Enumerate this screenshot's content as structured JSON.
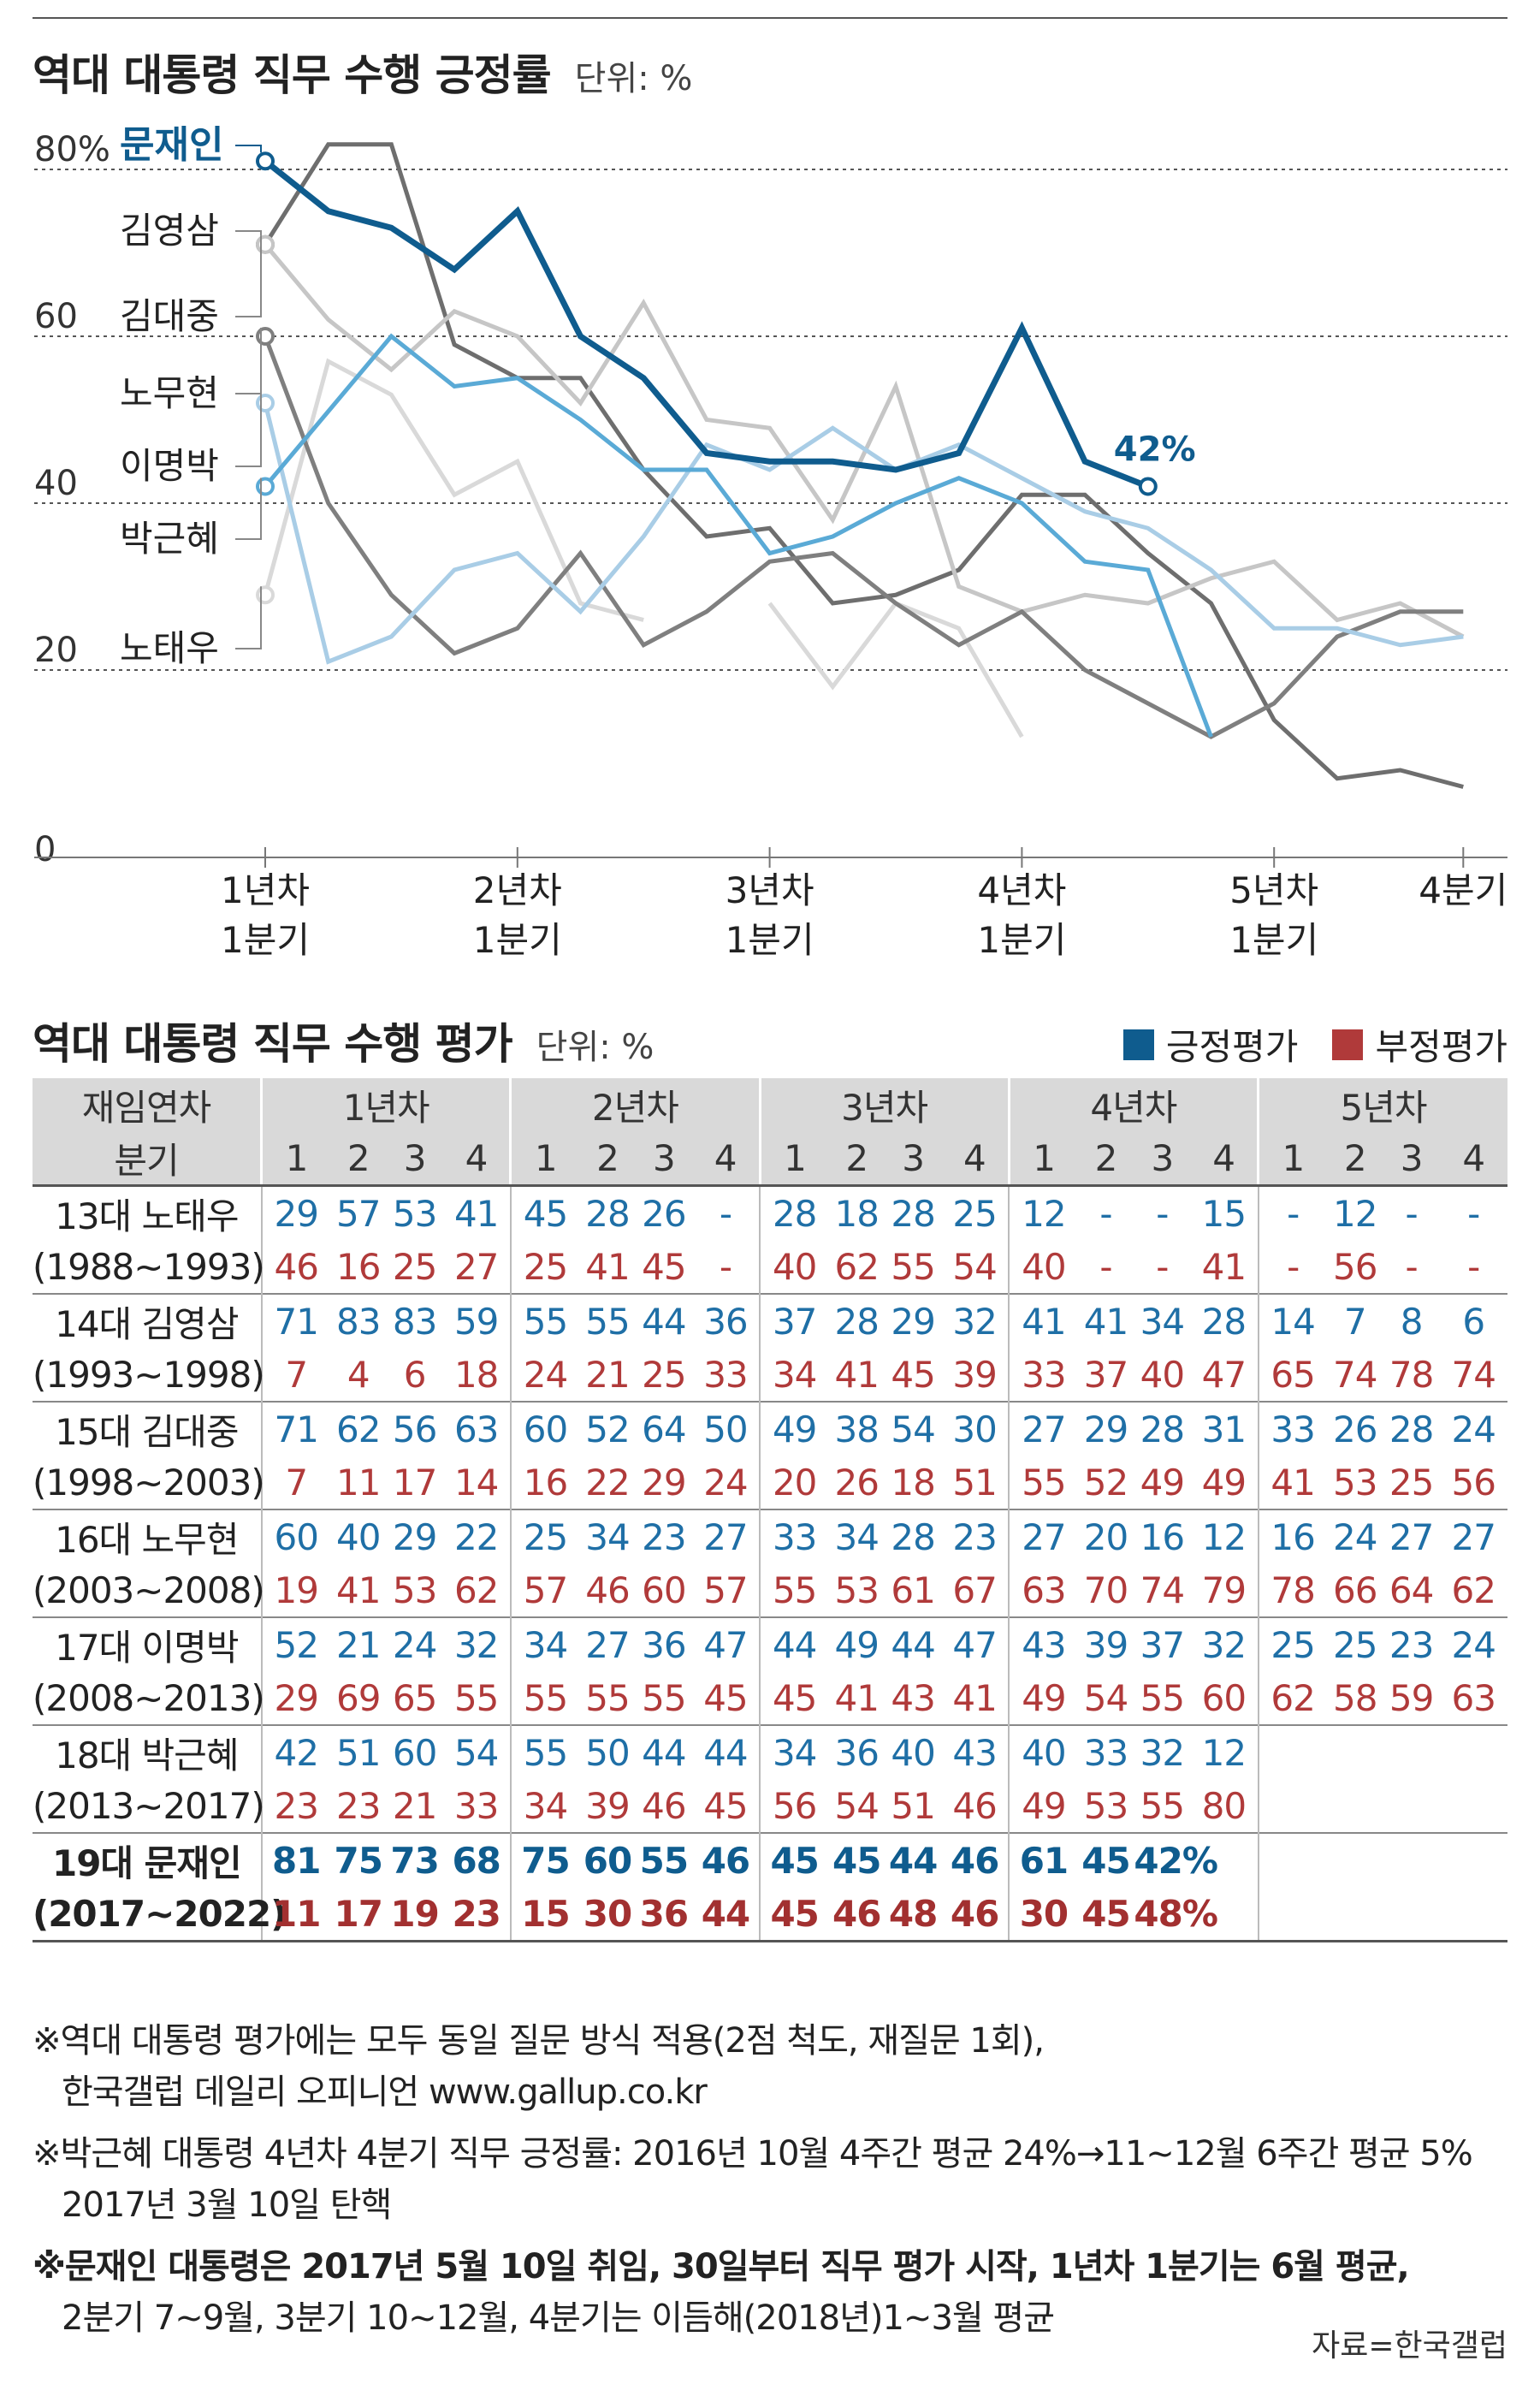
{
  "chart_title": "역대 대통령 직무 수행 긍정률",
  "chart_unit": "단위: %",
  "chart_data": {
    "type": "line",
    "title": "역대 대통령 직무 수행 긍정률",
    "ylabel": "",
    "ylim": [
      0,
      80
    ],
    "y_ticks": [
      "0",
      "20",
      "40",
      "60",
      "80%"
    ],
    "x_tick_labels": [
      {
        "quarter": 1,
        "label": [
          "1년차",
          "1분기"
        ]
      },
      {
        "quarter": 5,
        "label": [
          "2년차",
          "1분기"
        ]
      },
      {
        "quarter": 9,
        "label": [
          "3년차",
          "1분기"
        ]
      },
      {
        "quarter": 13,
        "label": [
          "4년차",
          "1분기"
        ]
      },
      {
        "quarter": 17,
        "label": [
          "5년차",
          "1분기"
        ]
      },
      {
        "quarter": 20,
        "label": [
          "4분기"
        ]
      }
    ],
    "x": [
      1,
      2,
      3,
      4,
      5,
      6,
      7,
      8,
      9,
      10,
      11,
      12,
      13,
      14,
      15,
      16,
      17,
      18,
      19,
      20
    ],
    "grid": true,
    "series": [
      {
        "name": "노태우",
        "color": "#d9d9d9",
        "values": [
          29,
          57,
          53,
          41,
          45,
          28,
          26,
          null,
          28,
          18,
          28,
          25,
          12,
          null,
          null,
          15,
          null,
          12,
          null,
          null
        ]
      },
      {
        "name": "김영삼",
        "color": "#6e6e6e",
        "values": [
          71,
          83,
          83,
          59,
          55,
          55,
          44,
          36,
          37,
          28,
          29,
          32,
          41,
          41,
          34,
          28,
          14,
          7,
          8,
          6
        ]
      },
      {
        "name": "김대중",
        "color": "#c6c6c6",
        "values": [
          71,
          62,
          56,
          63,
          60,
          52,
          64,
          50,
          49,
          38,
          54,
          30,
          27,
          29,
          28,
          31,
          33,
          26,
          28,
          24
        ]
      },
      {
        "name": "노무현",
        "color": "#7f7f7f",
        "values": [
          60,
          40,
          29,
          22,
          25,
          34,
          23,
          27,
          33,
          34,
          28,
          23,
          27,
          20,
          16,
          12,
          16,
          24,
          27,
          27
        ]
      },
      {
        "name": "이명박",
        "color": "#a9cde6",
        "values": [
          52,
          21,
          24,
          32,
          34,
          27,
          36,
          47,
          44,
          49,
          44,
          47,
          43,
          39,
          37,
          32,
          25,
          25,
          23,
          24
        ]
      },
      {
        "name": "박근혜",
        "color": "#5aaad6",
        "values": [
          42,
          51,
          60,
          54,
          55,
          50,
          44,
          44,
          34,
          36,
          40,
          43,
          40,
          33,
          32,
          12,
          null,
          null,
          null,
          null
        ]
      },
      {
        "name": "문재인",
        "color": "#0f5c8e",
        "values": [
          81,
          75,
          73,
          68,
          75,
          60,
          55,
          46,
          45,
          45,
          44,
          46,
          61,
          45,
          42,
          null,
          null,
          null,
          null,
          null
        ]
      }
    ],
    "annotations": [
      {
        "series": "문재인",
        "text": "42%"
      }
    ]
  },
  "eval_title": "역대 대통령 직무 수행 평가",
  "eval_unit": "단위: %",
  "legend": {
    "positive": "긍정평가",
    "negative": "부정평가",
    "positive_color": "#0f5c8e",
    "negative_color": "#b03a3a"
  },
  "table": {
    "corner": "재임연차",
    "quarter_label": "분기",
    "years": [
      "1년차",
      "2년차",
      "3년차",
      "4년차",
      "5년차"
    ],
    "quarters": [
      "1",
      "2",
      "3",
      "4"
    ],
    "rows": [
      {
        "name": "13대 노태우",
        "period": "(1988~1993)",
        "pos": [
          [
            "29",
            "57",
            "53",
            "41"
          ],
          [
            "45",
            "28",
            "26",
            "-"
          ],
          [
            "28",
            "18",
            "28",
            "25"
          ],
          [
            "12",
            "-",
            "-",
            "15"
          ],
          [
            "-",
            "12",
            "-",
            "-"
          ]
        ],
        "neg": [
          [
            "46",
            "16",
            "25",
            "27"
          ],
          [
            "25",
            "41",
            "45",
            "-"
          ],
          [
            "40",
            "62",
            "55",
            "54"
          ],
          [
            "40",
            "-",
            "-",
            "41"
          ],
          [
            "-",
            "56",
            "-",
            "-"
          ]
        ]
      },
      {
        "name": "14대 김영삼",
        "period": "(1993~1998)",
        "pos": [
          [
            "71",
            "83",
            "83",
            "59"
          ],
          [
            "55",
            "55",
            "44",
            "36"
          ],
          [
            "37",
            "28",
            "29",
            "32"
          ],
          [
            "41",
            "41",
            "34",
            "28"
          ],
          [
            "14",
            "7",
            "8",
            "6"
          ]
        ],
        "neg": [
          [
            "7",
            "4",
            "6",
            "18"
          ],
          [
            "24",
            "21",
            "25",
            "33"
          ],
          [
            "34",
            "41",
            "45",
            "39"
          ],
          [
            "33",
            "37",
            "40",
            "47"
          ],
          [
            "65",
            "74",
            "78",
            "74"
          ]
        ]
      },
      {
        "name": "15대 김대중",
        "period": "(1998~2003)",
        "pos": [
          [
            "71",
            "62",
            "56",
            "63"
          ],
          [
            "60",
            "52",
            "64",
            "50"
          ],
          [
            "49",
            "38",
            "54",
            "30"
          ],
          [
            "27",
            "29",
            "28",
            "31"
          ],
          [
            "33",
            "26",
            "28",
            "24"
          ]
        ],
        "neg": [
          [
            "7",
            "11",
            "17",
            "14"
          ],
          [
            "16",
            "22",
            "29",
            "24"
          ],
          [
            "20",
            "26",
            "18",
            "51"
          ],
          [
            "55",
            "52",
            "49",
            "49"
          ],
          [
            "41",
            "53",
            "25",
            "56"
          ]
        ]
      },
      {
        "name": "16대 노무현",
        "period": "(2003~2008)",
        "pos": [
          [
            "60",
            "40",
            "29",
            "22"
          ],
          [
            "25",
            "34",
            "23",
            "27"
          ],
          [
            "33",
            "34",
            "28",
            "23"
          ],
          [
            "27",
            "20",
            "16",
            "12"
          ],
          [
            "16",
            "24",
            "27",
            "27"
          ]
        ],
        "neg": [
          [
            "19",
            "41",
            "53",
            "62"
          ],
          [
            "57",
            "46",
            "60",
            "57"
          ],
          [
            "55",
            "53",
            "61",
            "67"
          ],
          [
            "63",
            "70",
            "74",
            "79"
          ],
          [
            "78",
            "66",
            "64",
            "62"
          ]
        ]
      },
      {
        "name": "17대 이명박",
        "period": "(2008~2013)",
        "pos": [
          [
            "52",
            "21",
            "24",
            "32"
          ],
          [
            "34",
            "27",
            "36",
            "47"
          ],
          [
            "44",
            "49",
            "44",
            "47"
          ],
          [
            "43",
            "39",
            "37",
            "32"
          ],
          [
            "25",
            "25",
            "23",
            "24"
          ]
        ],
        "neg": [
          [
            "29",
            "69",
            "65",
            "55"
          ],
          [
            "55",
            "55",
            "55",
            "45"
          ],
          [
            "45",
            "41",
            "43",
            "41"
          ],
          [
            "49",
            "54",
            "55",
            "60"
          ],
          [
            "62",
            "58",
            "59",
            "63"
          ]
        ]
      },
      {
        "name": "18대 박근혜",
        "period": "(2013~2017)",
        "pos": [
          [
            "42",
            "51",
            "60",
            "54"
          ],
          [
            "55",
            "50",
            "44",
            "44"
          ],
          [
            "34",
            "36",
            "40",
            "43"
          ],
          [
            "40",
            "33",
            "32",
            "12"
          ],
          [
            "",
            "",
            "",
            ""
          ]
        ],
        "neg": [
          [
            "23",
            "23",
            "21",
            "33"
          ],
          [
            "34",
            "39",
            "46",
            "45"
          ],
          [
            "56",
            "54",
            "51",
            "46"
          ],
          [
            "49",
            "53",
            "55",
            "80"
          ],
          [
            "",
            "",
            "",
            ""
          ]
        ]
      },
      {
        "name": "19대 문재인",
        "period": "(2017~2022)",
        "highlight": true,
        "pos": [
          [
            "81",
            "75",
            "73",
            "68"
          ],
          [
            "75",
            "60",
            "55",
            "46"
          ],
          [
            "45",
            "45",
            "44",
            "46"
          ],
          [
            "61",
            "45",
            "42%",
            ""
          ],
          [
            "",
            "",
            "",
            ""
          ]
        ],
        "neg": [
          [
            "11",
            "17",
            "19",
            "23"
          ],
          [
            "15",
            "30",
            "36",
            "44"
          ],
          [
            "45",
            "46",
            "48",
            "46"
          ],
          [
            "30",
            "45",
            "48%",
            ""
          ],
          [
            "",
            "",
            "",
            ""
          ]
        ]
      }
    ]
  },
  "notes": [
    {
      "lines": [
        "※역대 대통령 평가에는 모두 동일 질문 방식 적용(2점 척도, 재질문 1회),",
        "한국갤럽 데일리 오피니언 www.gallup.co.kr"
      ],
      "bold": false
    },
    {
      "lines": [
        "※박근혜 대통령 4년차 4분기 직무 긍정률: 2016년 10월 4주간 평균 24%→11~12월 6주간 평균 5%",
        "2017년 3월 10일 탄핵"
      ],
      "bold": false
    },
    {
      "lines": [
        "※문재인 대통령은 2017년 5월 10일 취임, 30일부터 직무 평가 시작, 1년차 1분기는 6월 평균,",
        "2분기 7~9월, 3분기 10~12월, 4분기는 이듬해(2018년)1~3월 평균"
      ],
      "bold": [
        true,
        false
      ]
    }
  ],
  "source": "자료=한국갤럽"
}
